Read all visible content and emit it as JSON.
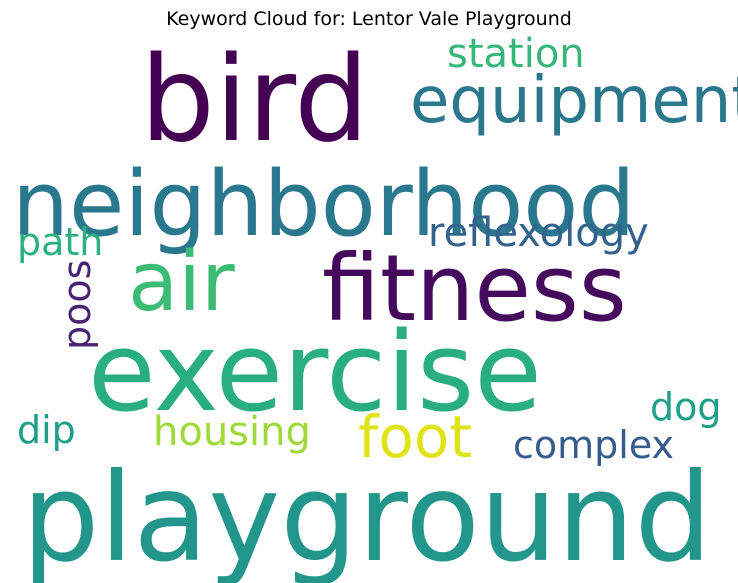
{
  "chart_data": {
    "type": "wordcloud",
    "title": "Keyword Cloud for: Lentor Vale Playground",
    "words": [
      {
        "text": "playground",
        "color": "#23968b"
      },
      {
        "text": "exercise",
        "color": "#28ae80"
      },
      {
        "text": "bird",
        "color": "#440154"
      },
      {
        "text": "neighborhood",
        "color": "#2a788e"
      },
      {
        "text": "fitness",
        "color": "#460a5d"
      },
      {
        "text": "air",
        "color": "#3cbb75"
      },
      {
        "text": "equipment",
        "color": "#2a778e"
      },
      {
        "text": "foot",
        "color": "#dfe318"
      },
      {
        "text": "station",
        "color": "#35b779"
      },
      {
        "text": "reflexology",
        "color": "#33638d"
      },
      {
        "text": "complex",
        "color": "#365c8d"
      },
      {
        "text": "housing",
        "color": "#a0da39"
      },
      {
        "text": "path",
        "color": "#2cb17e"
      },
      {
        "text": "dip",
        "color": "#1f9e89"
      },
      {
        "text": "dog",
        "color": "#1fa088"
      },
      {
        "text": "poos",
        "color": "#482475"
      }
    ]
  }
}
